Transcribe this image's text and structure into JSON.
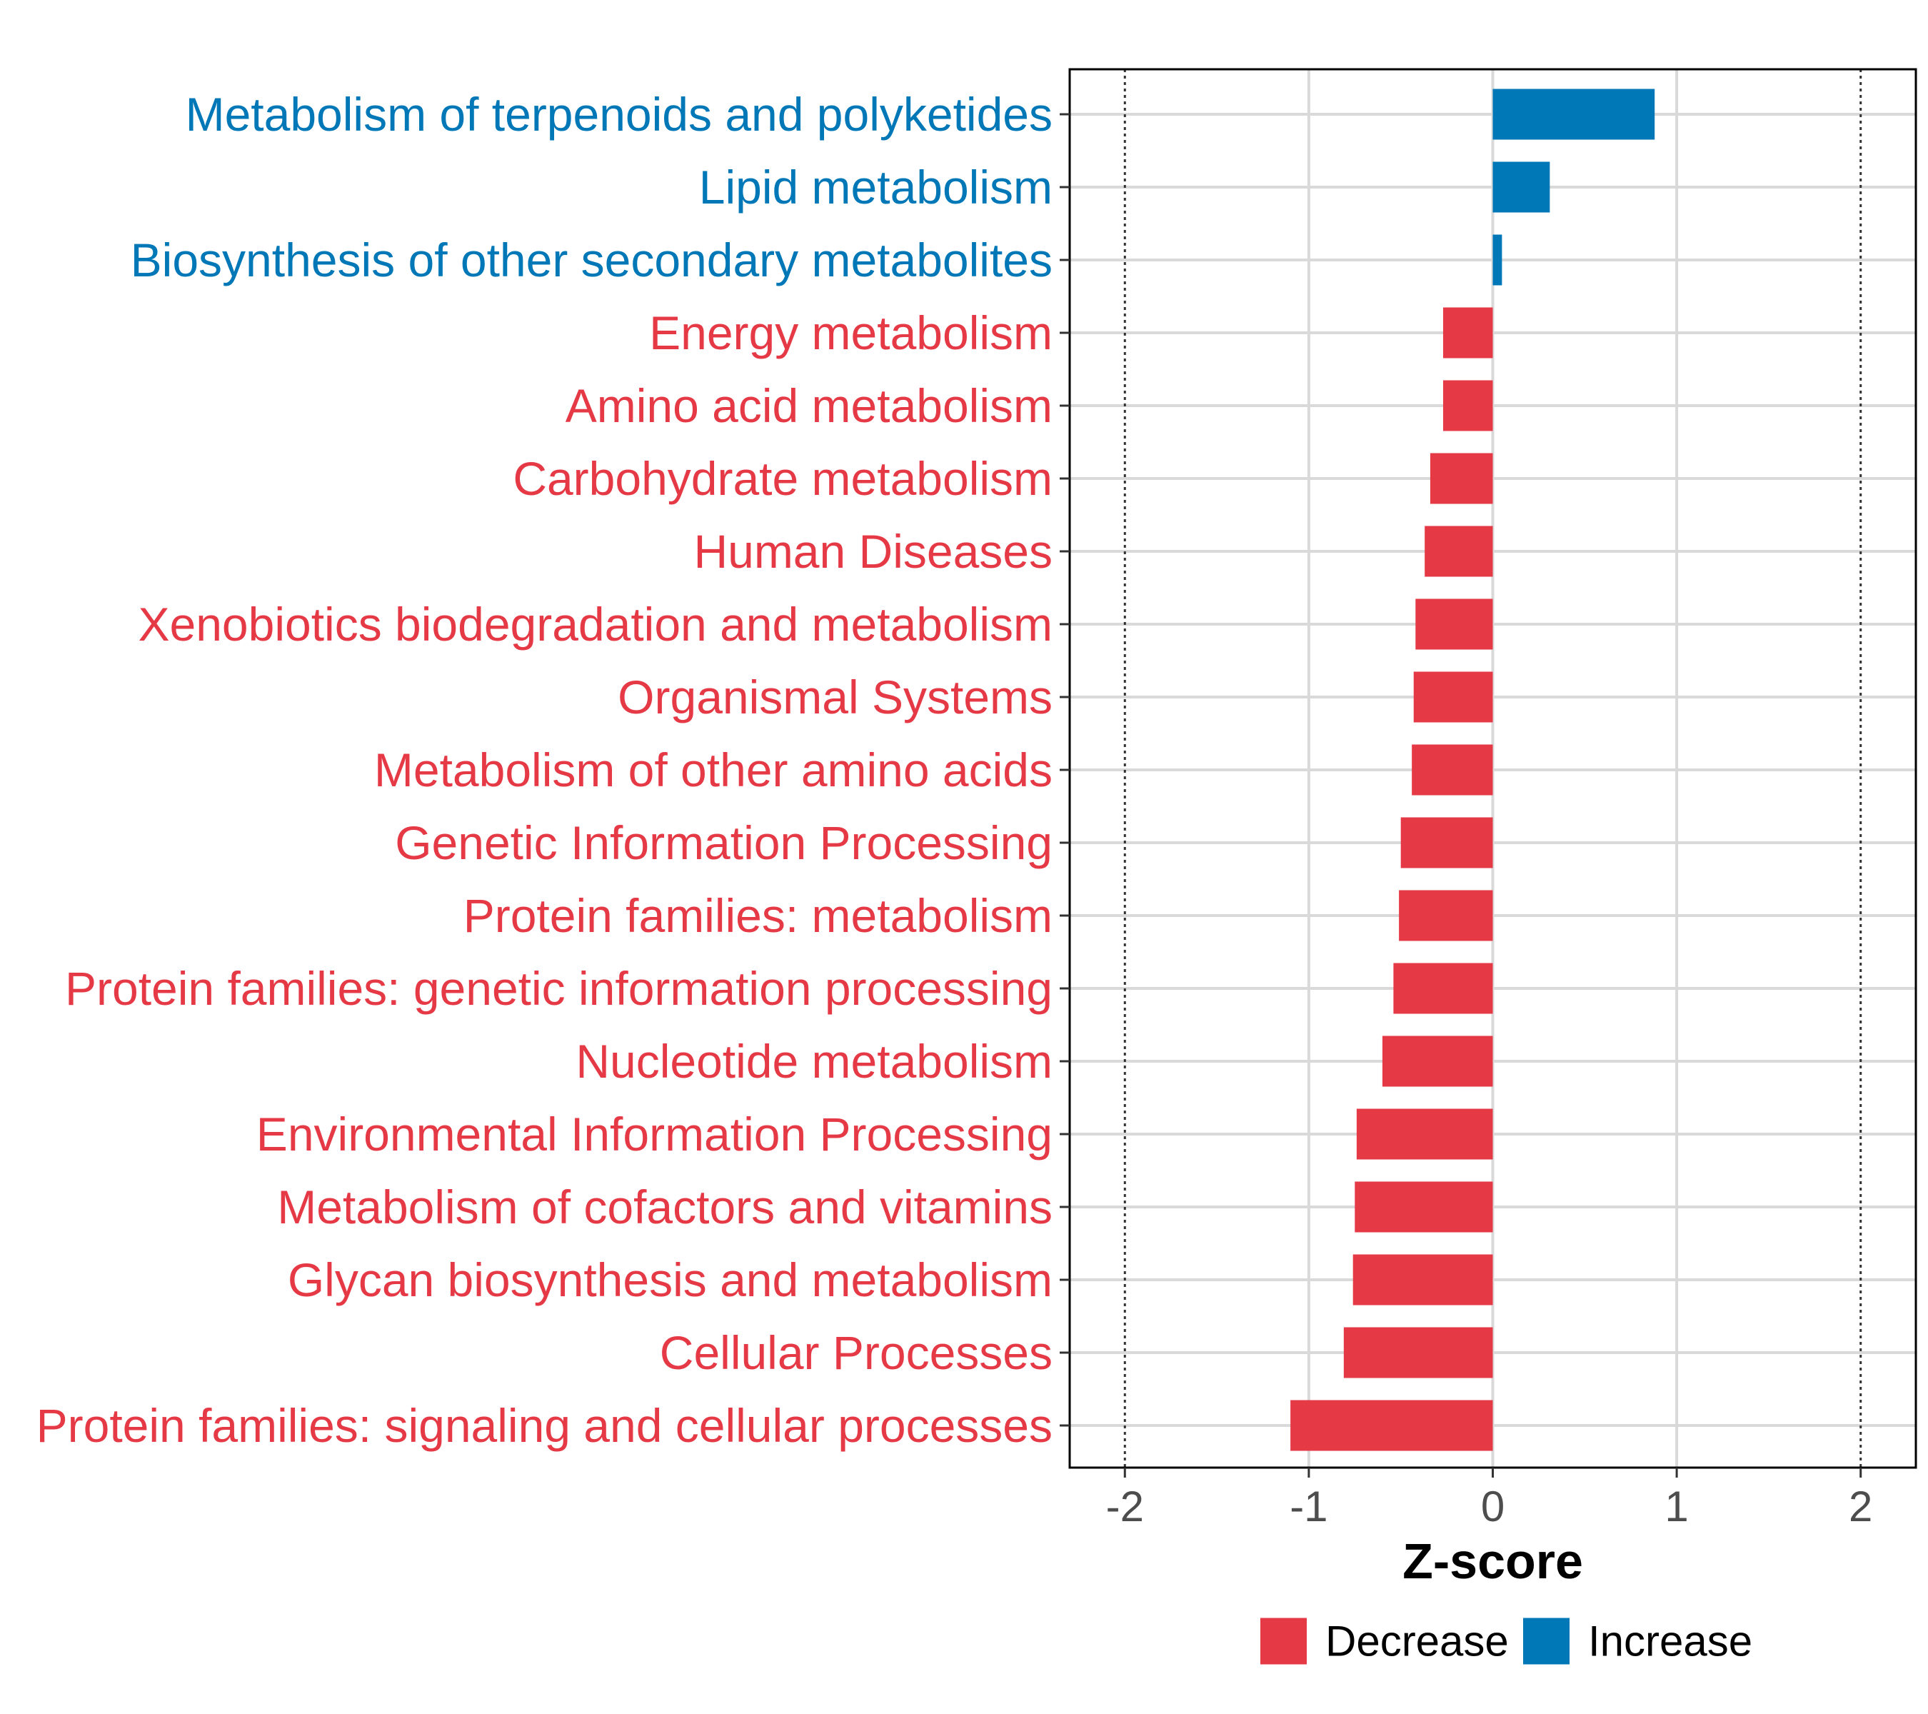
{
  "chart_data": {
    "type": "bar",
    "orientation": "horizontal",
    "xlabel": "Z-score",
    "xlim": [
      -2.3,
      2.3
    ],
    "x_ticks": [
      -2,
      -1,
      0,
      1,
      2
    ],
    "x_tick_labels": [
      "-2",
      "-1",
      "0",
      "1",
      "2"
    ],
    "reference_lines": [
      -2,
      2
    ],
    "grid": true,
    "legend_position": "bottom",
    "colors": {
      "Decrease": "#e63946",
      "Increase": "#0077b6"
    },
    "legend": [
      {
        "name": "Decrease",
        "color": "#e63946"
      },
      {
        "name": "Increase",
        "color": "#0077b6"
      }
    ],
    "categories": [
      "Metabolism of terpenoids and polyketides",
      "Lipid metabolism",
      "Biosynthesis of other secondary metabolites",
      "Energy metabolism",
      "Amino acid metabolism",
      "Carbohydrate metabolism",
      "Human Diseases",
      "Xenobiotics biodegradation and metabolism",
      "Organismal Systems",
      "Metabolism of other amino acids",
      "Genetic Information Processing",
      "Protein families: metabolism",
      "Protein families: genetic information processing",
      "Nucleotide metabolism",
      "Environmental Information Processing",
      "Metabolism of cofactors and vitamins",
      "Glycan biosynthesis and metabolism",
      "Cellular Processes",
      "Protein families: signaling and cellular processes"
    ],
    "values": [
      0.88,
      0.31,
      0.05,
      -0.27,
      -0.27,
      -0.34,
      -0.37,
      -0.42,
      -0.43,
      -0.44,
      -0.5,
      -0.51,
      -0.54,
      -0.6,
      -0.74,
      -0.75,
      -0.76,
      -0.81,
      -1.1
    ],
    "groups": [
      "Increase",
      "Increase",
      "Increase",
      "Decrease",
      "Decrease",
      "Decrease",
      "Decrease",
      "Decrease",
      "Decrease",
      "Decrease",
      "Decrease",
      "Decrease",
      "Decrease",
      "Decrease",
      "Decrease",
      "Decrease",
      "Decrease",
      "Decrease",
      "Decrease"
    ]
  }
}
